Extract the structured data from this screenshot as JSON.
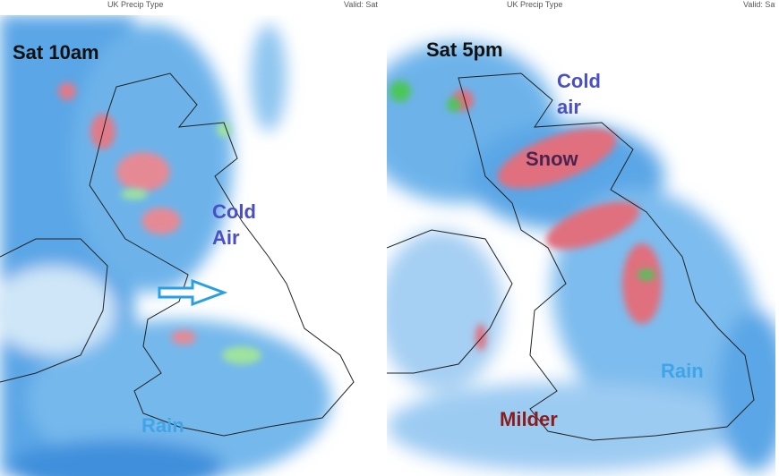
{
  "panels": [
    {
      "header": {
        "title": "UK Precip Type",
        "valid": "Valid: Sat"
      },
      "time": "Sat 10am",
      "labels": [
        "Cold Air",
        "Rain"
      ]
    },
    {
      "header": {
        "title": "UK Precip Type",
        "valid": "Valid: Sat"
      },
      "time": "Sat 5pm",
      "labels": [
        "Cold air",
        "Snow",
        "Rain",
        "Milder"
      ]
    }
  ]
}
